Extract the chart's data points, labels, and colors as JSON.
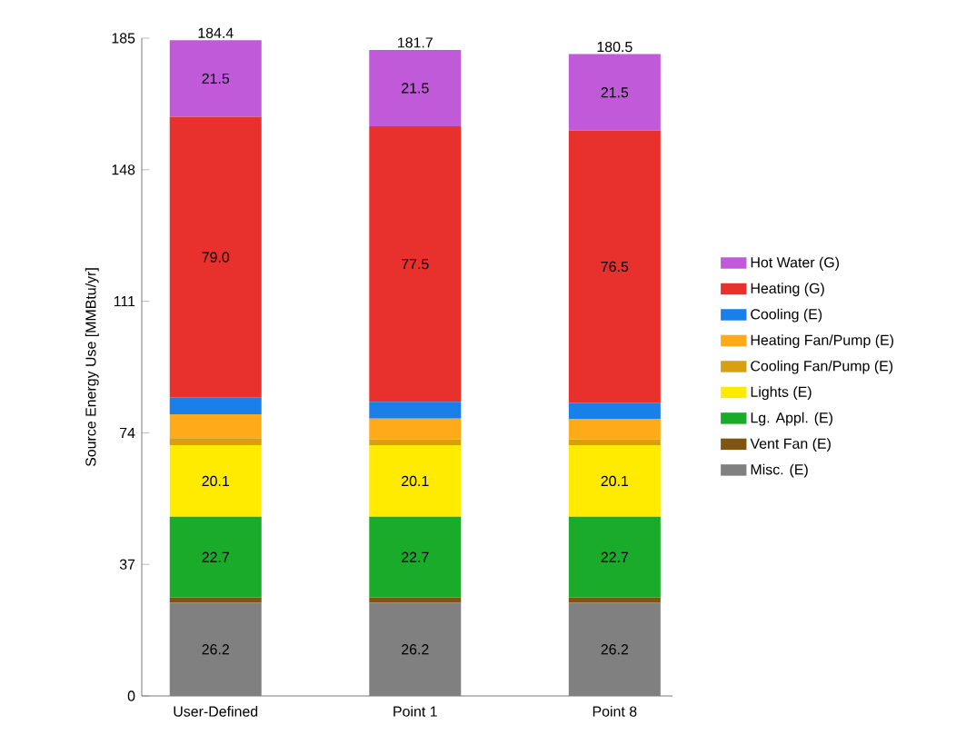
{
  "chart_data": {
    "type": "bar",
    "stacked": true,
    "ylabel": "Source Energy Use [MMBtu/yr]",
    "categories": [
      "User-Defined",
      "Point 1",
      "Point 8"
    ],
    "ylim": [
      0,
      185
    ],
    "yticks": [
      0,
      37,
      74,
      111,
      148,
      185
    ],
    "legend": "right",
    "totals": [
      "184.4",
      "181.7",
      "180.5"
    ],
    "series": [
      {
        "name": "Misc. (E)",
        "color": "#808080",
        "values": [
          26.2,
          26.2,
          26.2
        ],
        "value_labels": [
          "26.2",
          "26.2",
          "26.2"
        ]
      },
      {
        "name": "Vent Fan (E)",
        "color": "#7f5512",
        "values": [
          1.5,
          1.5,
          1.5
        ],
        "value_labels": [
          null,
          null,
          null
        ]
      },
      {
        "name": "Lg. Appl. (E)",
        "color": "#1aab2a",
        "values": [
          22.7,
          22.7,
          22.7
        ],
        "value_labels": [
          "22.7",
          "22.7",
          "22.7"
        ]
      },
      {
        "name": "Lights (E)",
        "color": "#ffeb00",
        "values": [
          20.1,
          20.1,
          20.1
        ],
        "value_labels": [
          "20.1",
          "20.1",
          "20.1"
        ]
      },
      {
        "name": "Cooling Fan/Pump (E)",
        "color": "#d8a010",
        "values": [
          2.0,
          1.7,
          1.7
        ],
        "value_labels": [
          null,
          null,
          null
        ]
      },
      {
        "name": "Heating Fan/Pump (E)",
        "color": "#ffaa18",
        "values": [
          6.7,
          5.8,
          5.6
        ],
        "value_labels": [
          null,
          null,
          null
        ]
      },
      {
        "name": "Cooling (E)",
        "color": "#1a7fe8",
        "values": [
          4.7,
          4.7,
          4.7
        ],
        "value_labels": [
          null,
          null,
          null
        ]
      },
      {
        "name": "Heating (G)",
        "color": "#e8302c",
        "values": [
          79.0,
          77.5,
          76.5
        ],
        "value_labels": [
          "79.0",
          "77.5",
          "76.5"
        ]
      },
      {
        "name": "Hot Water (G)",
        "color": "#c05ad8",
        "values": [
          21.5,
          21.5,
          21.5
        ],
        "value_labels": [
          "21.5",
          "21.5",
          "21.5"
        ]
      }
    ]
  }
}
